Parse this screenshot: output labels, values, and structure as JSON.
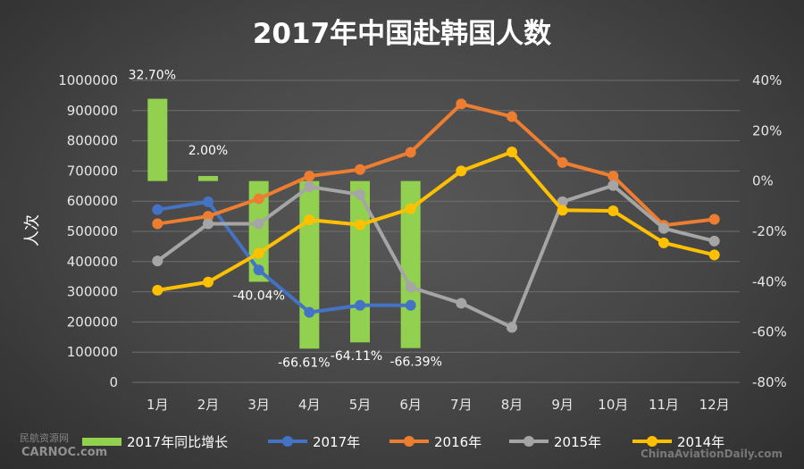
{
  "watermark": {
    "logo_cn": "民航资源网",
    "logo_en": "CARNOC.com",
    "right": "ChinaAviationDaily.com"
  },
  "chart_data": {
    "type": "line",
    "title": "2017年中国赴韩国人数",
    "ylabel": "人次",
    "categories": [
      "1月",
      "2月",
      "3月",
      "4月",
      "5月",
      "6月",
      "7月",
      "8月",
      "9月",
      "10月",
      "11月",
      "12月"
    ],
    "y_ticks": [
      "0",
      "100000",
      "200000",
      "300000",
      "400000",
      "500000",
      "600000",
      "700000",
      "800000",
      "900000",
      "1000000"
    ],
    "y2_ticks": [
      "-80%",
      "-60%",
      "-40%",
      "-20%",
      "0%",
      "20%",
      "40%"
    ],
    "ylim": [
      0,
      1000000
    ],
    "y2lim": [
      -80,
      40
    ],
    "grid": true,
    "legend_position": "bottom",
    "bar_series": {
      "name": "2017年同比增长",
      "color": "#92d050",
      "values": [
        32.7,
        2.0,
        -40.04,
        -66.61,
        -64.11,
        -66.39
      ],
      "labels": [
        "32.70%",
        "2.00%",
        "-40.04%",
        "-66.61%",
        "-64.11%",
        "-66.39%"
      ]
    },
    "series": [
      {
        "name": "2017年",
        "color": "#4472c4",
        "values": [
          572000,
          598000,
          372000,
          232000,
          255000,
          255000,
          null,
          null,
          null,
          null,
          null,
          null
        ]
      },
      {
        "name": "2016年",
        "color": "#ed7d31",
        "values": [
          525000,
          550000,
          608000,
          683000,
          705000,
          762000,
          922000,
          880000,
          728000,
          683000,
          520000,
          540000
        ]
      },
      {
        "name": "2015年",
        "color": "#a5a5a5",
        "values": [
          402000,
          525000,
          525000,
          648000,
          622000,
          315000,
          262000,
          182000,
          598000,
          652000,
          510000,
          468000
        ]
      },
      {
        "name": "2014年",
        "color": "#ffc000",
        "values": [
          305000,
          332000,
          428000,
          538000,
          522000,
          575000,
          700000,
          763000,
          570000,
          568000,
          462000,
          422000
        ]
      }
    ]
  }
}
